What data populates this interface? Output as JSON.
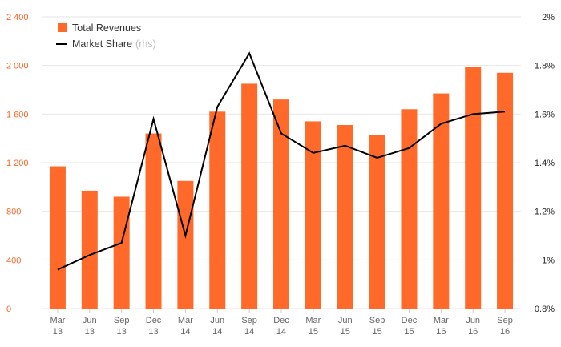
{
  "colors": {
    "bar": "#ff6a2a",
    "line": "#000000",
    "grid": "#e6e6e6",
    "left_axis_text": "#f46a2c",
    "right_axis_text": "#222222",
    "x_axis_text": "#666666"
  },
  "legend": {
    "items": [
      {
        "label": "Total Revenues",
        "note": "",
        "icon": "orange-square-icon"
      },
      {
        "label": "Market Share",
        "note": "(rhs)",
        "icon": "black-line-icon"
      }
    ]
  },
  "chart_data": {
    "type": "bar",
    "categories": [
      [
        "Mar",
        "13"
      ],
      [
        "Jun",
        "13"
      ],
      [
        "Sep",
        "13"
      ],
      [
        "Dec",
        "13"
      ],
      [
        "Mar",
        "14"
      ],
      [
        "Jun",
        "14"
      ],
      [
        "Sep",
        "14"
      ],
      [
        "Dec",
        "14"
      ],
      [
        "Mar",
        "15"
      ],
      [
        "Jun",
        "15"
      ],
      [
        "Sep",
        "15"
      ],
      [
        "Dec",
        "15"
      ],
      [
        "Mar",
        "16"
      ],
      [
        "Jun",
        "16"
      ],
      [
        "Sep",
        "16"
      ]
    ],
    "series": [
      {
        "name": "Total Revenues",
        "type": "bar",
        "axis": "left",
        "values": [
          1170,
          970,
          920,
          1440,
          1050,
          1620,
          1850,
          1720,
          1540,
          1510,
          1430,
          1640,
          1770,
          1990,
          1940
        ]
      },
      {
        "name": "Market Share (rhs)",
        "type": "line",
        "axis": "right",
        "values": [
          0.96,
          1.02,
          1.07,
          1.58,
          1.1,
          1.63,
          1.85,
          1.52,
          1.44,
          1.47,
          1.42,
          1.46,
          1.56,
          1.6,
          1.61
        ]
      }
    ],
    "left_axis": {
      "min": 0,
      "max": 2400,
      "ticks": [
        0,
        400,
        800,
        1200,
        1600,
        2000,
        2400
      ],
      "tick_labels": [
        "0",
        "400",
        "800",
        "1 200",
        "1 600",
        "2 000",
        "2 400"
      ]
    },
    "right_axis": {
      "min": 0.8,
      "max": 2.0,
      "ticks": [
        0.8,
        1.0,
        1.2,
        1.4,
        1.6,
        1.8,
        2.0
      ],
      "tick_labels": [
        "0.8%",
        "1%",
        "1.2%",
        "1.4%",
        "1.6%",
        "1.8%",
        "2%"
      ]
    },
    "grid": true,
    "legend_position": "top-left",
    "title": "",
    "xlabel": "",
    "ylabel": ""
  }
}
